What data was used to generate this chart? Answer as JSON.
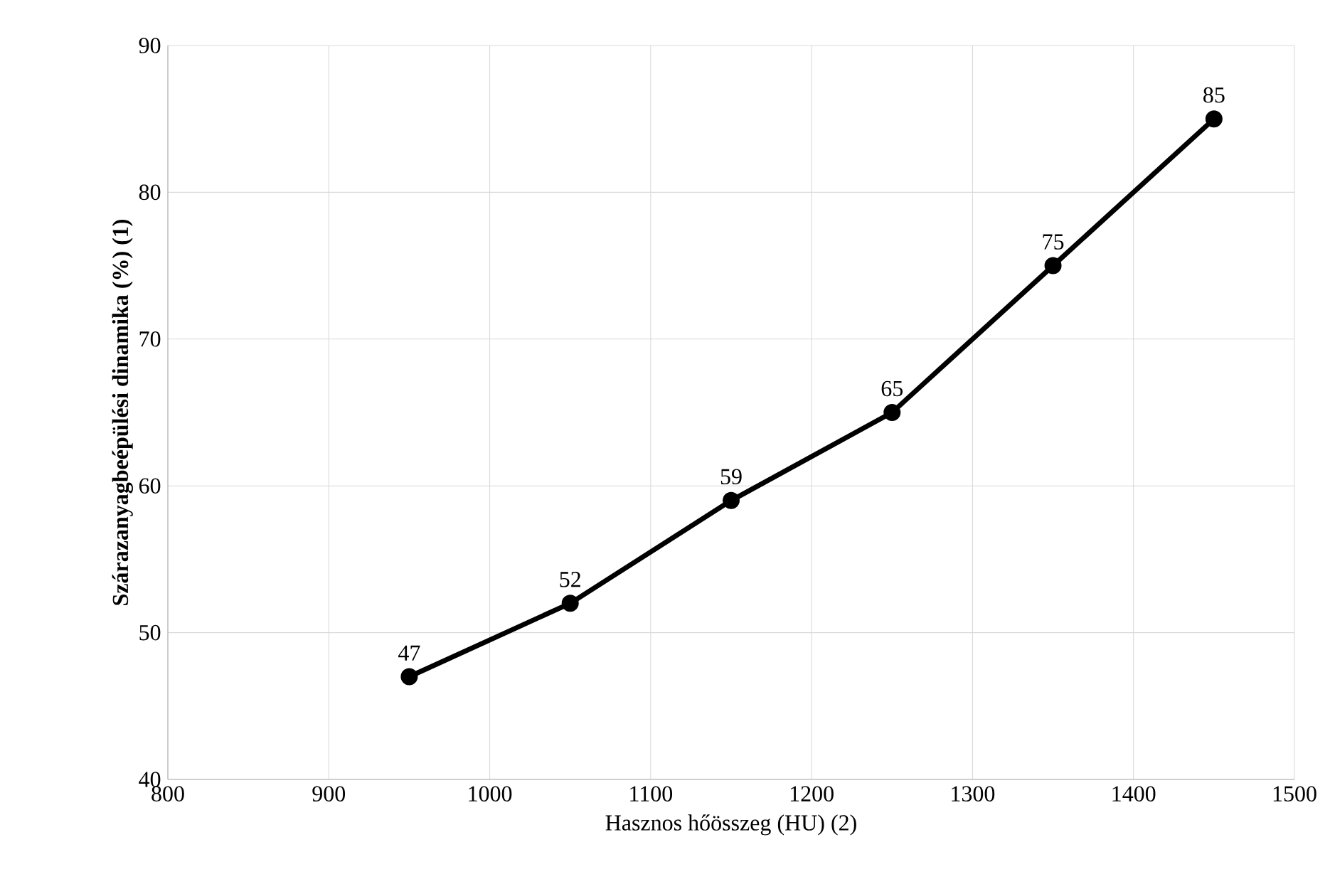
{
  "chart_data": {
    "type": "line",
    "xlabel": "Hasznos hőösszeg (HU) (2)",
    "ylabel": "**Szárazanyagbeépülési dinamika (%) (1)**",
    "x": [
      950,
      1050,
      1150,
      1250,
      1350,
      1450
    ],
    "series": [
      {
        "color": "#000000",
        "values": [
          47,
          52,
          59,
          65,
          75,
          85
        ]
      }
    ],
    "xlim": [
      800,
      1500
    ],
    "xticks": [
      800,
      900,
      1000,
      1100,
      1200,
      1300,
      1400,
      1500
    ],
    "ylim": [
      40,
      90
    ],
    "yticks": [
      40,
      50,
      60,
      70,
      80,
      90
    ],
    "grid": true,
    "marker": "circle",
    "line_style": "solid",
    "data_labels": true
  }
}
